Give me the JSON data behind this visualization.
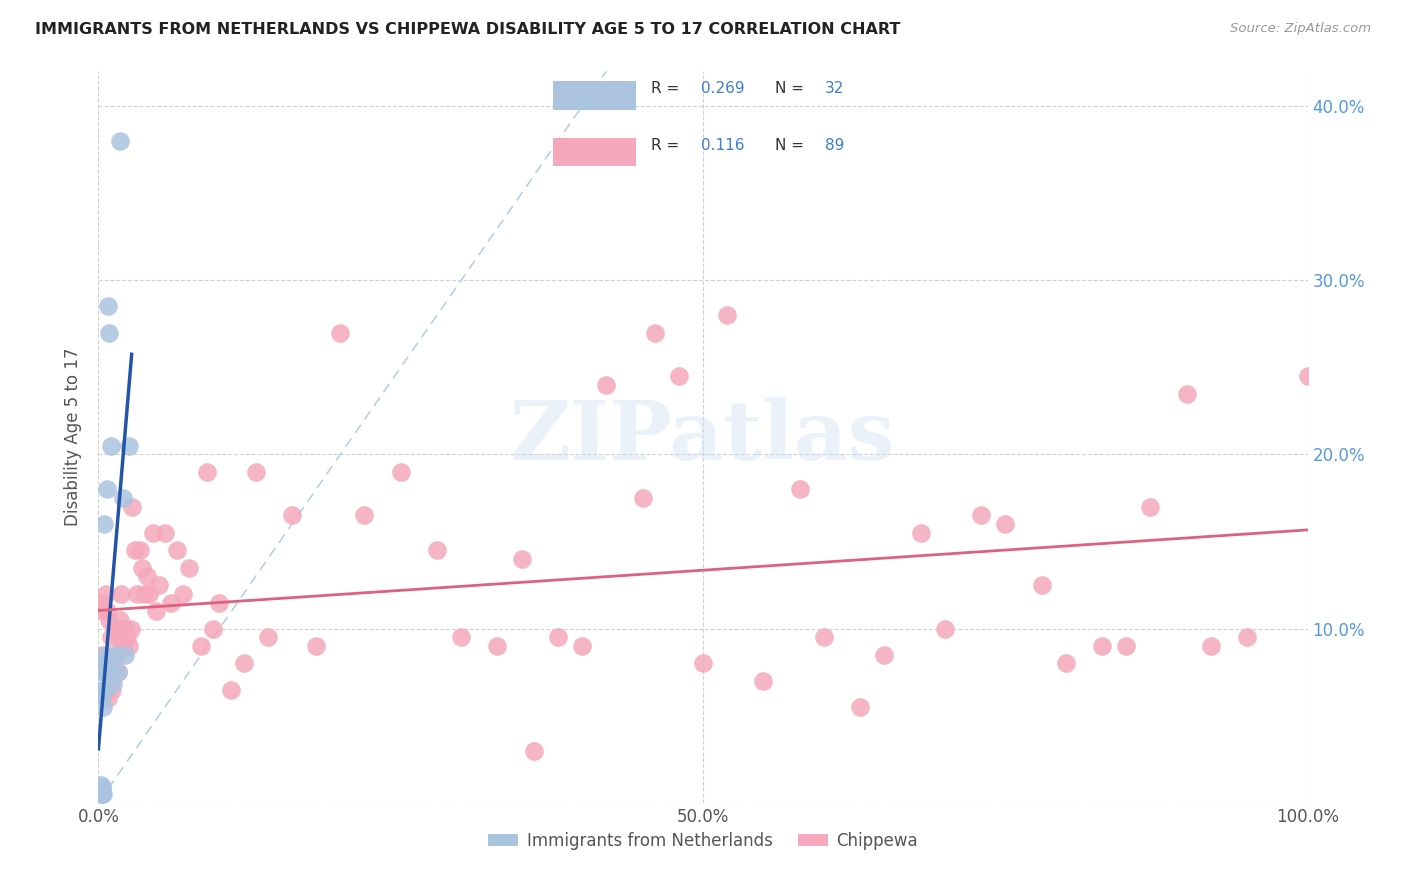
{
  "title": "IMMIGRANTS FROM NETHERLANDS VS CHIPPEWA DISABILITY AGE 5 TO 17 CORRELATION CHART",
  "source": "Source: ZipAtlas.com",
  "ylabel": "Disability Age 5 to 17",
  "xlim": [
    0.0,
    1.0
  ],
  "ylim": [
    0.0,
    0.42
  ],
  "xtick_positions": [
    0.0,
    0.5,
    1.0
  ],
  "xticklabels": [
    "0.0%",
    "50.0%",
    "100.0%"
  ],
  "ytick_positions": [
    0.0,
    0.1,
    0.2,
    0.3,
    0.4
  ],
  "yticklabels_right": [
    "",
    "10.0%",
    "20.0%",
    "30.0%",
    "40.0%"
  ],
  "netherlands_R": "0.269",
  "netherlands_N": "32",
  "chippewa_R": "0.116",
  "chippewa_N": "89",
  "netherlands_color": "#aac4e0",
  "chippewa_color": "#f5a8bb",
  "netherlands_line_color": "#2255aa",
  "chippewa_line_color": "#e06080",
  "diagonal_line_color": "#b8cfe8",
  "label_color": "#333333",
  "value_color": "#3a7fd5",
  "right_axis_color": "#5599dd",
  "watermark": "ZIPatlas",
  "legend_label1": "Immigrants from Netherlands",
  "legend_label2": "Chippewa",
  "netherlands_x": [
    0.002,
    0.002,
    0.002,
    0.002,
    0.003,
    0.003,
    0.003,
    0.003,
    0.003,
    0.003,
    0.004,
    0.004,
    0.004,
    0.004,
    0.005,
    0.005,
    0.005,
    0.006,
    0.006,
    0.006,
    0.007,
    0.008,
    0.009,
    0.01,
    0.011,
    0.012,
    0.014,
    0.016,
    0.018,
    0.02,
    0.022,
    0.025
  ],
  "netherlands_y": [
    0.005,
    0.007,
    0.008,
    0.01,
    0.005,
    0.006,
    0.007,
    0.009,
    0.062,
    0.075,
    0.005,
    0.055,
    0.065,
    0.08,
    0.065,
    0.075,
    0.16,
    0.075,
    0.08,
    0.085,
    0.18,
    0.285,
    0.27,
    0.205,
    0.075,
    0.068,
    0.085,
    0.075,
    0.38,
    0.175,
    0.085,
    0.205
  ],
  "chippewa_x": [
    0.002,
    0.003,
    0.004,
    0.005,
    0.006,
    0.006,
    0.007,
    0.007,
    0.008,
    0.009,
    0.009,
    0.01,
    0.01,
    0.011,
    0.012,
    0.013,
    0.014,
    0.015,
    0.016,
    0.017,
    0.018,
    0.019,
    0.02,
    0.021,
    0.022,
    0.023,
    0.024,
    0.025,
    0.027,
    0.028,
    0.03,
    0.032,
    0.034,
    0.036,
    0.038,
    0.04,
    0.042,
    0.045,
    0.048,
    0.05,
    0.055,
    0.06,
    0.065,
    0.07,
    0.075,
    0.085,
    0.09,
    0.095,
    0.1,
    0.11,
    0.12,
    0.13,
    0.14,
    0.16,
    0.18,
    0.2,
    0.22,
    0.25,
    0.28,
    0.3,
    0.33,
    0.36,
    0.4,
    0.45,
    0.5,
    0.55,
    0.6,
    0.65,
    0.7,
    0.75,
    0.8,
    0.85,
    0.9,
    0.92,
    0.95,
    1.0,
    0.58,
    0.63,
    0.68,
    0.73,
    0.78,
    0.83,
    0.87,
    0.52,
    0.42,
    0.46,
    0.48,
    0.38,
    0.35
  ],
  "chippewa_y": [
    0.115,
    0.085,
    0.11,
    0.075,
    0.08,
    0.12,
    0.065,
    0.11,
    0.06,
    0.075,
    0.105,
    0.07,
    0.095,
    0.065,
    0.08,
    0.075,
    0.1,
    0.085,
    0.075,
    0.095,
    0.105,
    0.12,
    0.09,
    0.1,
    0.1,
    0.095,
    0.095,
    0.09,
    0.1,
    0.17,
    0.145,
    0.12,
    0.145,
    0.135,
    0.12,
    0.13,
    0.12,
    0.155,
    0.11,
    0.125,
    0.155,
    0.115,
    0.145,
    0.12,
    0.135,
    0.09,
    0.19,
    0.1,
    0.115,
    0.065,
    0.08,
    0.19,
    0.095,
    0.165,
    0.09,
    0.27,
    0.165,
    0.19,
    0.145,
    0.095,
    0.09,
    0.03,
    0.09,
    0.175,
    0.08,
    0.07,
    0.095,
    0.085,
    0.1,
    0.16,
    0.08,
    0.09,
    0.235,
    0.09,
    0.095,
    0.245,
    0.18,
    0.055,
    0.155,
    0.165,
    0.125,
    0.09,
    0.17,
    0.28,
    0.24,
    0.27,
    0.245,
    0.095,
    0.14
  ]
}
